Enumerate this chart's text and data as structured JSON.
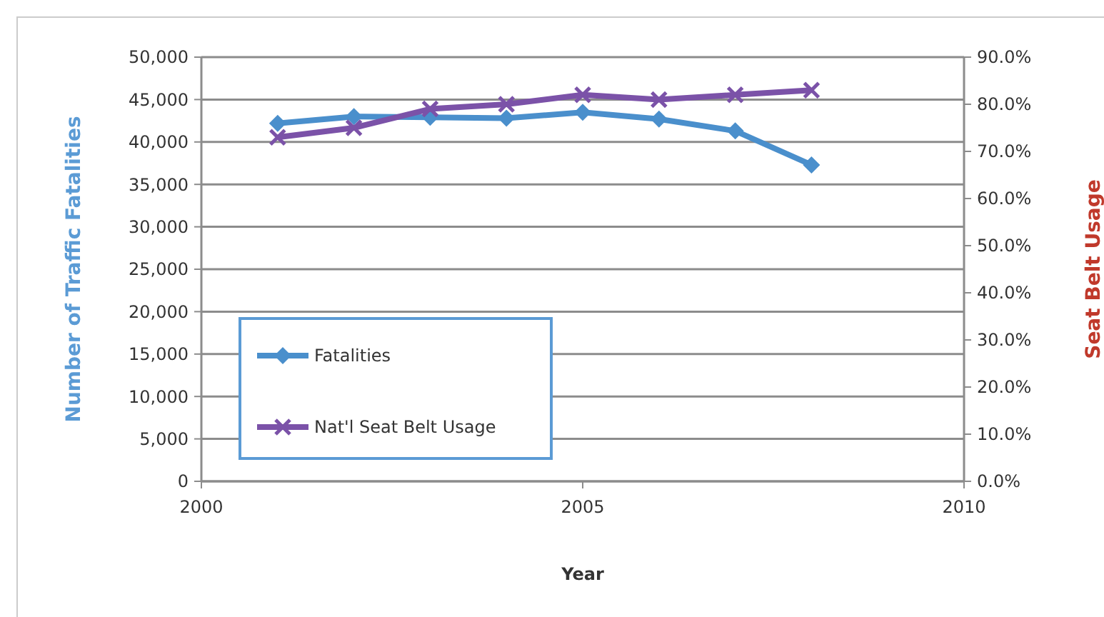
{
  "chart_data": {
    "type": "line",
    "xlabel": "Year",
    "ylabel": "Number of Traffic Fatalities",
    "y2label": "Seat Belt Usage",
    "x": [
      2001,
      2002,
      2003,
      2004,
      2005,
      2006,
      2007,
      2008
    ],
    "series": [
      {
        "name": "Fatalities",
        "color": "#4a8fcc",
        "marker": "diamond",
        "values": [
          42200,
          43000,
          42900,
          42800,
          43500,
          42700,
          41300,
          37300
        ]
      },
      {
        "name": "Nat'l Seat Belt Usage",
        "color": "#7b52a8",
        "marker": "cross",
        "axis": "y2",
        "values": [
          73,
          75,
          79,
          80,
          82,
          81,
          82,
          83
        ]
      }
    ],
    "xlim": [
      2000,
      2010
    ],
    "xticks": [
      2000,
      2005,
      2010
    ],
    "ylim": [
      0,
      50000
    ],
    "yticks": [
      {
        "value": 0,
        "label": "0"
      },
      {
        "value": 5000,
        "label": "5,000"
      },
      {
        "value": 10000,
        "label": "10,000"
      },
      {
        "value": 15000,
        "label": "15,000"
      },
      {
        "value": 20000,
        "label": "20,000"
      },
      {
        "value": 25000,
        "label": "25,000"
      },
      {
        "value": 30000,
        "label": "30,000"
      },
      {
        "value": 35000,
        "label": "35,000"
      },
      {
        "value": 40000,
        "label": "40,000"
      },
      {
        "value": 45000,
        "label": "45,000"
      },
      {
        "value": 50000,
        "label": "50,000"
      }
    ],
    "y2lim": [
      0,
      90
    ],
    "y2ticks": [
      {
        "value": 0,
        "label": "0.0%"
      },
      {
        "value": 10,
        "label": "10.0%"
      },
      {
        "value": 20,
        "label": "20.0%"
      },
      {
        "value": 30,
        "label": "30.0%"
      },
      {
        "value": 40,
        "label": "40.0%"
      },
      {
        "value": 50,
        "label": "50.0%"
      },
      {
        "value": 60,
        "label": "60.0%"
      },
      {
        "value": 70,
        "label": "70.0%"
      },
      {
        "value": 80,
        "label": "80.0%"
      },
      {
        "value": 90,
        "label": "90.0%"
      }
    ],
    "grid": "y",
    "legend": "bottom left",
    "line_style": "solid"
  }
}
